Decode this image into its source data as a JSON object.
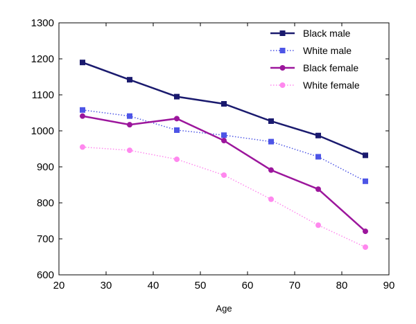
{
  "chart_data": {
    "type": "line",
    "title": "",
    "xlabel": "Age",
    "ylabel": "",
    "xlim": [
      20,
      90
    ],
    "ylim": [
      600,
      1300
    ],
    "xticks": [
      20,
      30,
      40,
      50,
      60,
      70,
      80,
      90
    ],
    "yticks": [
      600,
      700,
      800,
      900,
      1000,
      1100,
      1200,
      1300
    ],
    "grid": false,
    "legend_position": "top-right",
    "x": [
      25,
      35,
      45,
      55,
      65,
      75,
      85
    ],
    "series": [
      {
        "name": "Black male",
        "values": [
          1190,
          1142,
          1095,
          1075,
          1027,
          987,
          932
        ],
        "color": "#1a1a6e",
        "line": "solid",
        "marker": "square"
      },
      {
        "name": "White male",
        "values": [
          1058,
          1041,
          1002,
          988,
          970,
          928,
          860
        ],
        "color": "#4d55e6",
        "line": "dotted",
        "marker": "square"
      },
      {
        "name": "Black female",
        "values": [
          1041,
          1017,
          1034,
          973,
          891,
          838,
          721
        ],
        "color": "#9c169c",
        "line": "solid",
        "marker": "circle"
      },
      {
        "name": "White female",
        "values": [
          955,
          946,
          921,
          877,
          810,
          738,
          677
        ],
        "color": "#ff88ee",
        "line": "dotted",
        "marker": "circle"
      }
    ]
  }
}
